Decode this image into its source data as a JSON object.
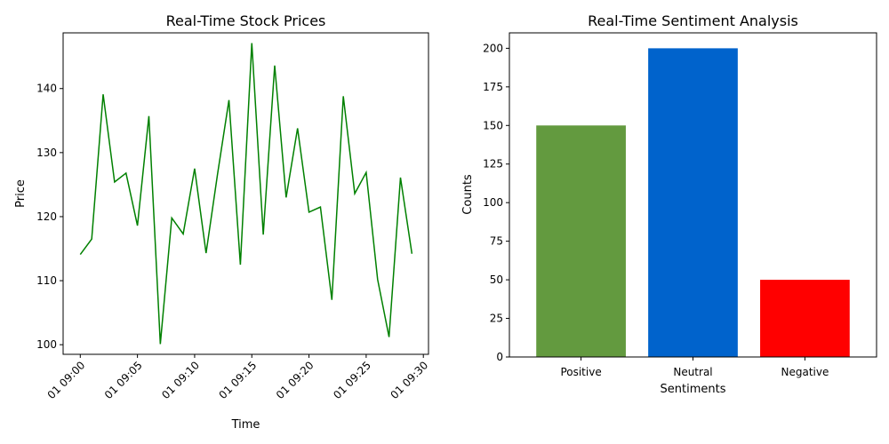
{
  "chart_data": [
    {
      "type": "line",
      "title": "Real-Time Stock Prices",
      "xlabel": "Time",
      "ylabel": "Price",
      "color": "#008000",
      "x": [
        "01 09:00",
        "01 09:01",
        "01 09:02",
        "01 09:03",
        "01 09:04",
        "01 09:05",
        "01 09:06",
        "01 09:07",
        "01 09:08",
        "01 09:09",
        "01 09:10",
        "01 09:11",
        "01 09:12",
        "01 09:13",
        "01 09:14",
        "01 09:15",
        "01 09:16",
        "01 09:17",
        "01 09:18",
        "01 09:19",
        "01 09:20",
        "01 09:21",
        "01 09:22",
        "01 09:23",
        "01 09:24",
        "01 09:25",
        "01 09:26",
        "01 09:27",
        "01 09:28",
        "01 09:29"
      ],
      "values": [
        114.1,
        116.5,
        139.1,
        125.4,
        126.8,
        118.6,
        135.7,
        100.1,
        119.8,
        117.3,
        127.5,
        114.3,
        126.6,
        138.2,
        112.5,
        147.1,
        117.2,
        143.6,
        123.0,
        133.8,
        120.7,
        121.5,
        107.0,
        138.8,
        123.6,
        126.9,
        110.2,
        101.2,
        126.1,
        114.2
      ],
      "xticks": [
        "01 09:00",
        "01 09:05",
        "01 09:10",
        "01 09:15",
        "01 09:20",
        "01 09:25",
        "01 09:30"
      ],
      "yticks": [
        100,
        110,
        120,
        130,
        140
      ],
      "ylim": [
        98.5,
        148.7
      ],
      "xlim": [
        -1.5,
        30.45
      ],
      "grid": false
    },
    {
      "type": "bar",
      "title": "Real-Time Sentiment Analysis",
      "xlabel": "Sentiments",
      "ylabel": "Counts",
      "categories": [
        "Positive",
        "Neutral",
        "Negative"
      ],
      "values": [
        150,
        200,
        50
      ],
      "colors": [
        "#639a3f",
        "#0063cc",
        "#ff0000"
      ],
      "yticks": [
        0,
        25,
        50,
        75,
        100,
        125,
        150,
        175,
        200
      ],
      "ylim": [
        0,
        210
      ],
      "grid": false
    }
  ]
}
